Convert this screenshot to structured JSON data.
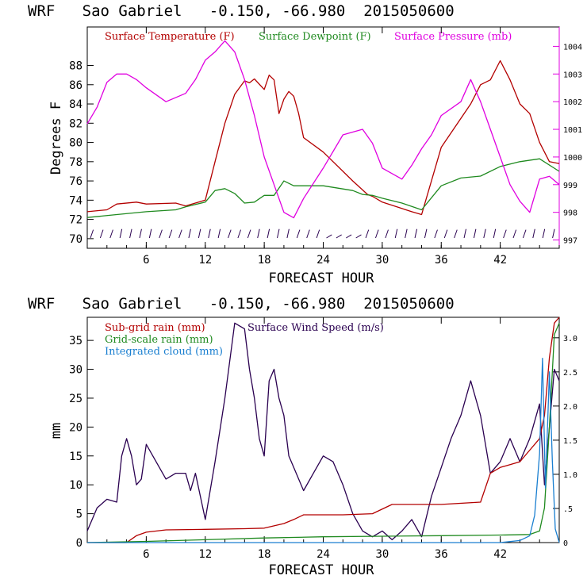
{
  "chart_data": [
    {
      "type": "line",
      "title": "WRF   Sao Gabriel   -0.150, -66.980  2015050600",
      "xlabel": "FORECAST HOUR",
      "ylabel": "Degrees F",
      "xlim": [
        0,
        48
      ],
      "ylim": [
        69,
        92
      ],
      "y2lim": [
        996.7,
        1004.7
      ],
      "xticks": [
        "6",
        "12",
        "18",
        "24",
        "30",
        "36",
        "42"
      ],
      "yticks": [
        "70",
        "72",
        "74",
        "76",
        "78",
        "80",
        "82",
        "84",
        "86",
        "88"
      ],
      "y2ticks": [
        "997",
        "998",
        "999",
        "1000",
        "1001",
        "1002",
        "1003",
        "1004"
      ],
      "colors": {
        "temperature": "#b30000",
        "dewpoint": "#1f8a1f",
        "pressure": "#e000e0",
        "wind": "#2a0050"
      },
      "legend": [
        "Surface Temperature (F)",
        "Surface Dewpoint (F)",
        "Surface Pressure (mb)"
      ],
      "series": [
        {
          "name": "Surface Temperature (F)",
          "axis": "left",
          "x": [
            0,
            2,
            3,
            5,
            6,
            9,
            10,
            12,
            13,
            14,
            15,
            16,
            16.5,
            17,
            18,
            18.5,
            19,
            19.5,
            20,
            20.5,
            21,
            21.5,
            22,
            24,
            27,
            28.5,
            29,
            30,
            33,
            34,
            36,
            38,
            39,
            40,
            41,
            42,
            43,
            44,
            45,
            46,
            47,
            48
          ],
          "values": [
            72.8,
            73,
            73.6,
            73.8,
            73.6,
            73.7,
            73.4,
            74,
            78,
            82,
            85,
            86.4,
            86.2,
            86.6,
            85.5,
            87,
            86.5,
            83,
            84.5,
            85.3,
            84.8,
            83,
            80.5,
            79,
            76,
            74.6,
            74.4,
            73.8,
            72.8,
            72.5,
            79.5,
            82.5,
            84,
            86,
            86.5,
            88.5,
            86.5,
            84,
            83,
            80,
            78,
            77.8
          ]
        },
        {
          "name": "Surface Dewpoint (F)",
          "axis": "left",
          "x": [
            0,
            3,
            6,
            9,
            10,
            12,
            13,
            14,
            15,
            16,
            17,
            18,
            19,
            20,
            21,
            22,
            24,
            27,
            28,
            29,
            30,
            32,
            34,
            36,
            38,
            40,
            42,
            44,
            46,
            48
          ],
          "values": [
            72.2,
            72.5,
            72.8,
            73,
            73.3,
            73.8,
            75,
            75.2,
            74.7,
            73.7,
            73.8,
            74.5,
            74.5,
            76,
            75.5,
            75.5,
            75.5,
            75,
            74.6,
            74.5,
            74.2,
            73.7,
            73,
            75.5,
            76.3,
            76.5,
            77.5,
            78,
            78.3,
            77
          ]
        },
        {
          "name": "Surface Pressure (mb)",
          "axis": "right",
          "x": [
            0,
            1,
            2,
            3,
            4,
            5,
            6,
            8,
            10,
            11,
            12,
            13,
            14,
            15,
            16,
            17,
            18,
            19,
            20,
            21,
            22,
            24,
            26,
            28,
            29,
            30,
            32,
            33,
            34,
            35,
            36,
            38,
            39,
            40,
            41,
            42,
            43,
            44,
            45,
            46,
            47,
            48
          ],
          "values": [
            1001.2,
            1001.8,
            1002.7,
            1003,
            1003,
            1002.8,
            1002.5,
            1002,
            1002.3,
            1002.8,
            1003.5,
            1003.8,
            1004.2,
            1003.8,
            1002.8,
            1001.5,
            1000,
            999,
            998,
            997.8,
            998.5,
            999.6,
            1000.8,
            1001,
            1000.5,
            999.6,
            999.2,
            999.7,
            1000.3,
            1000.8,
            1001.5,
            1002,
            1002.8,
            1002,
            1001,
            1000,
            999,
            998.4,
            998,
            999.2,
            999.3,
            999
          ]
        }
      ]
    },
    {
      "type": "line",
      "title": "WRF   Sao Gabriel   -0.150, -66.980  2015050600",
      "xlabel": "FORECAST HOUR",
      "ylabel": "mm",
      "xlim": [
        0,
        48
      ],
      "ylim": [
        0,
        39
      ],
      "y2lim": [
        0,
        3.3
      ],
      "xticks": [
        "6",
        "12",
        "18",
        "24",
        "30",
        "36",
        "42"
      ],
      "yticks": [
        "0",
        "5",
        "10",
        "15",
        "20",
        "25",
        "30",
        "35"
      ],
      "y2ticks": [
        "0",
        ".5",
        "1.0",
        "1.5",
        "2.0",
        "2.5",
        "3.0"
      ],
      "colors": {
        "subgrid": "#b30000",
        "gridscale": "#1f8a1f",
        "cloud": "#1a7fd0",
        "wind": "#2a0050"
      },
      "legend": [
        "Sub-grid rain (mm)",
        "Surface Wind Speed (m/s)",
        "Grid-scale rain (mm)",
        "Integrated cloud (mm)"
      ],
      "series": [
        {
          "name": "Surface Wind Speed (m/s)",
          "axis": "left",
          "x": [
            0,
            1,
            2,
            3,
            3.5,
            4,
            4.5,
            5,
            5.5,
            6,
            7,
            8,
            9,
            10,
            10.5,
            11,
            12,
            13,
            14,
            15,
            16,
            16.5,
            17,
            17.5,
            18,
            18.5,
            19,
            19.5,
            20,
            20.5,
            21,
            22,
            23,
            24,
            25,
            26,
            27,
            28,
            29,
            30,
            31,
            32,
            33,
            34,
            35,
            36,
            37,
            38,
            39,
            40,
            41,
            42,
            43,
            44,
            45,
            46,
            46.5,
            47,
            47.5,
            48
          ],
          "values": [
            2,
            6,
            7.5,
            7,
            15,
            18,
            15,
            10,
            11,
            17,
            14,
            11,
            12,
            12,
            9,
            12,
            4,
            14,
            25,
            38,
            37,
            30,
            25,
            18,
            15,
            28,
            30,
            25,
            22,
            15,
            13,
            9,
            12,
            15,
            14,
            10,
            5,
            2,
            1,
            2,
            0.5,
            2,
            4,
            1,
            8,
            13,
            18,
            22,
            28,
            22,
            12,
            14,
            18,
            14,
            18,
            24,
            10,
            20,
            30,
            28
          ]
        },
        {
          "name": "Sub-grid rain (mm)",
          "axis": "left",
          "x": [
            0,
            4,
            5,
            6,
            8,
            12,
            16,
            18,
            20,
            21,
            22,
            26,
            29,
            31,
            36,
            40,
            41,
            42,
            44,
            45,
            46,
            46.5,
            47,
            47.5,
            48
          ],
          "values": [
            0,
            0,
            1.2,
            1.8,
            2.2,
            2.3,
            2.4,
            2.5,
            3.3,
            4,
            4.8,
            4.8,
            5,
            6.6,
            6.6,
            7,
            12,
            13,
            14,
            16,
            18,
            22,
            32,
            38,
            39
          ]
        },
        {
          "name": "Grid-scale rain (mm)",
          "axis": "left",
          "x": [
            0,
            6,
            12,
            18,
            24,
            30,
            36,
            42,
            45,
            46,
            46.5,
            47,
            47.5,
            48
          ],
          "values": [
            0,
            0.2,
            0.5,
            0.8,
            1,
            1.1,
            1.2,
            1.3,
            1.4,
            2,
            6,
            20,
            36,
            38
          ]
        },
        {
          "name": "Integrated cloud (mm)",
          "axis": "right",
          "x": [
            0,
            42,
            44,
            45,
            45.5,
            46,
            46.3,
            46.6,
            47,
            47.3,
            47.6,
            48
          ],
          "values": [
            0,
            0,
            0.03,
            0.1,
            0.4,
            1.3,
            2.7,
            0.8,
            2.5,
            1.2,
            0.2,
            0
          ]
        }
      ]
    }
  ]
}
